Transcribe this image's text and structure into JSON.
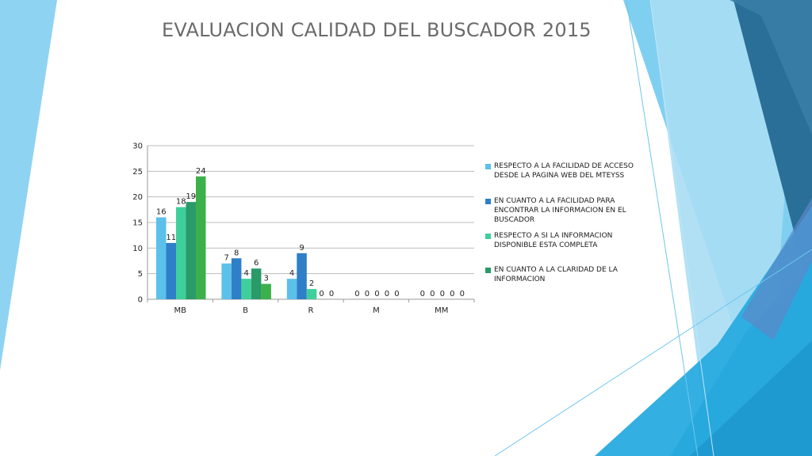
{
  "slide": {
    "title": "EVALUACION CALIDAD DEL BUSCADOR 2015"
  },
  "chart_data": {
    "type": "bar",
    "title": "",
    "xlabel": "",
    "ylabel": "",
    "categories": [
      "MB",
      "B",
      "R",
      "M",
      "MM"
    ],
    "ylim": [
      0,
      30
    ],
    "yticks": [
      0,
      5,
      10,
      15,
      20,
      25,
      30
    ],
    "grid": true,
    "legend_position": "right",
    "series": [
      {
        "name": "RESPECTO A LA FACILIDAD DE ACCESO DESDE LA PAGINA WEB DEL MTEYSS",
        "color": "#5bc0ea",
        "values": [
          16,
          7,
          4,
          0,
          0
        ]
      },
      {
        "name": "EN CUANTO A LA FACILIDAD PARA ENCONTRAR LA INFORMACION  EN EL BUSCADOR",
        "color": "#2e7fc7",
        "values": [
          11,
          8,
          9,
          0,
          0
        ]
      },
      {
        "name": "RESPECTO A SI LA INFORMACION DISPONIBLE ESTA COMPLETA",
        "color": "#3fcf9c",
        "values": [
          18,
          4,
          2,
          0,
          0
        ]
      },
      {
        "name": "EN CUANTO A LA CLARIDAD DE LA INFORMACION",
        "color": "#2a9a68",
        "values": [
          19,
          6,
          0,
          0,
          0
        ]
      },
      {
        "name": "",
        "color": "#3cb04a",
        "values": [
          24,
          3,
          0,
          0,
          0
        ]
      }
    ]
  }
}
